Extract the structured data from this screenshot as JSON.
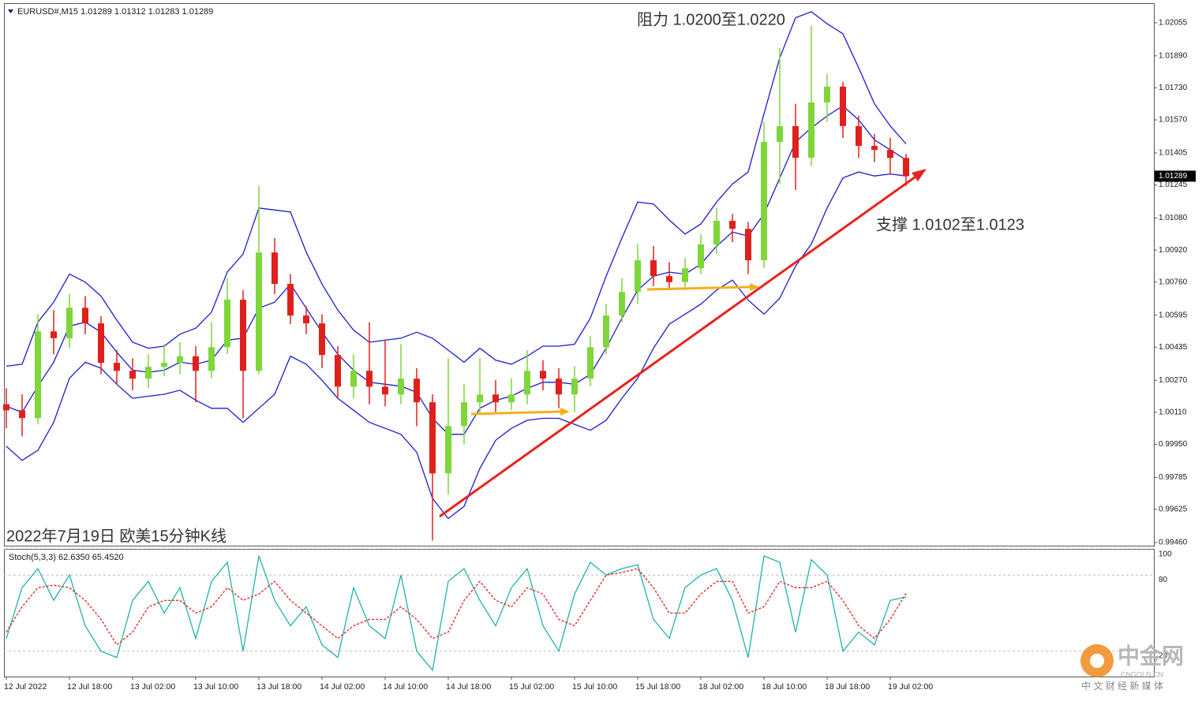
{
  "chart_data": [
    {
      "type": "candlestick",
      "title": "EURUSD#,M15  1.01289 1.01312 1.01283 1.01289",
      "annotations": [
        "阻力 1.0200至1.0220",
        "支撑 1.0102至1.0123",
        "2022年7月19日 欧美15分钟K线"
      ],
      "up_color": "#7ed63a",
      "down_color": "#e0201c",
      "open": [
        1.0015,
        1.0012,
        1.00081,
        1.00514,
        1.0048,
        1.00632,
        1.00554,
        1.00357,
        1.00317,
        1.00278,
        1.00337,
        1.00357,
        1.0039,
        1.00317,
        1.00435,
        1.00672,
        1.00317,
        1.00908,
        1.00751,
        1.00593,
        1.00554,
        1.00396,
        1.00238,
        1.00317,
        1.00238,
        1.00199,
        1.00278,
        1.0016,
        0.99805,
        1.00041,
        1.0016,
        1.00199,
        1.0016,
        1.00199,
        1.00317,
        1.00278,
        1.00199,
        1.00278,
        1.00435,
        1.00593,
        1.00711,
        1.00869,
        1.0079,
        1.0076,
        1.00829,
        1.00948,
        1.01066,
        1.01026,
        1.00869,
        1.0146,
        1.01539,
        1.01381,
        1.01657,
        1.01736,
        1.01539,
        1.0144,
        1.0142,
        1.0138
      ],
      "high": [
        1.0023,
        1.002,
        1.006,
        1.0062,
        1.007,
        1.0069,
        1.0059,
        1.0042,
        1.0038,
        1.004,
        1.0045,
        1.0046,
        1.0044,
        1.0056,
        1.0078,
        1.0072,
        1.0124,
        1.0098,
        1.008,
        1.0064,
        1.006,
        1.0044,
        1.004,
        1.0056,
        1.0047,
        1.0045,
        1.0033,
        1.002,
        1.0038,
        1.0025,
        1.0038,
        1.0027,
        1.0028,
        1.0042,
        1.0037,
        1.0033,
        1.0034,
        1.0049,
        1.0065,
        1.0078,
        1.0095,
        1.0094,
        1.0086,
        1.0088,
        1.01,
        1.0113,
        1.011,
        1.0106,
        1.0156,
        1.0193,
        1.0165,
        1.0204,
        1.018,
        1.0176,
        1.0159,
        1.015,
        1.0148,
        1.014
      ],
      "low": [
        1.0003,
        0.9999,
        1.0005,
        1.004,
        1.0043,
        1.005,
        1.003,
        1.0025,
        1.0022,
        1.0023,
        1.0029,
        1.003,
        1.0016,
        1.0028,
        1.004,
        1.0008,
        1.003,
        1.007,
        1.0055,
        1.005,
        1.0033,
        1.0018,
        1.0018,
        1.0015,
        1.0014,
        1.0015,
        1.0004,
        0.9947,
        0.997,
        0.9995,
        1.001,
        1.0011,
        1.0012,
        1.0015,
        1.0022,
        1.0013,
        1.0011,
        1.0024,
        1.004,
        1.0056,
        1.0065,
        1.0074,
        1.0072,
        1.0072,
        1.008,
        1.009,
        1.0096,
        1.008,
        1.0083,
        1.0125,
        1.0122,
        1.0134,
        1.0156,
        1.0148,
        1.0138,
        1.0136,
        1.013,
        1.0124
      ],
      "close": [
        1.0012,
        1.00081,
        1.00514,
        1.0048,
        1.00632,
        1.00554,
        1.00357,
        1.00317,
        1.00278,
        1.00337,
        1.00357,
        1.0039,
        1.00317,
        1.00435,
        1.00672,
        1.00317,
        1.00908,
        1.00751,
        1.00593,
        1.00554,
        1.00396,
        1.00238,
        1.00317,
        1.00238,
        1.00199,
        1.00278,
        1.0016,
        0.99805,
        1.00041,
        1.0016,
        1.00199,
        1.0016,
        1.00199,
        1.00317,
        1.00278,
        1.00199,
        1.00278,
        1.00435,
        1.00593,
        1.00711,
        1.00869,
        1.0079,
        1.0076,
        1.00829,
        1.00948,
        1.01066,
        1.01026,
        1.00869,
        1.0146,
        1.01539,
        1.01381,
        1.01657,
        1.01736,
        1.01539,
        1.0144,
        1.0142,
        1.0138,
        1.01289
      ],
      "bands": {
        "color": "#1c1cd0",
        "upper": [
          1.0034,
          1.0035,
          1.0056,
          1.0066,
          1.008,
          1.0076,
          1.0069,
          1.0057,
          1.0046,
          1.0043,
          1.0044,
          1.005,
          1.0053,
          1.0061,
          1.0081,
          1.009,
          1.0113,
          1.0112,
          1.0111,
          1.0091,
          1.0075,
          1.0062,
          1.0052,
          1.0046,
          1.0047,
          1.0048,
          1.0051,
          1.0048,
          1.0042,
          1.0036,
          1.0043,
          1.0037,
          1.0035,
          1.0039,
          1.0044,
          1.0044,
          1.0045,
          1.0058,
          1.0079,
          1.0098,
          1.0116,
          1.0115,
          1.0107,
          1.01,
          1.0105,
          1.0116,
          1.0125,
          1.0131,
          1.016,
          1.0188,
          1.0208,
          1.0211,
          1.0205,
          1.02,
          1.0183,
          1.0165,
          1.0154,
          1.0145
        ],
        "middle": [
          1.0014,
          1.0011,
          1.0024,
          1.0036,
          1.0054,
          1.0056,
          1.0051,
          1.0041,
          1.0032,
          1.0031,
          1.0032,
          1.0036,
          1.0035,
          1.0037,
          1.0047,
          1.0048,
          1.0063,
          1.0066,
          1.0075,
          1.0063,
          1.0051,
          1.004,
          1.0032,
          1.0026,
          1.0025,
          1.0024,
          1.0021,
          1.0008,
          1.0,
          1.0,
          1.0013,
          1.0017,
          1.0019,
          1.0023,
          1.0026,
          1.0026,
          1.0025,
          1.003,
          1.0043,
          1.0058,
          1.0072,
          1.0079,
          1.0081,
          1.008,
          1.0085,
          1.0094,
          1.0101,
          1.0099,
          1.011,
          1.0128,
          1.0146,
          1.0153,
          1.0159,
          1.0164,
          1.0157,
          1.0147,
          1.0142,
          1.0137
        ],
        "lower": [
          0.9994,
          0.9987,
          0.9992,
          1.0006,
          1.0028,
          1.0036,
          1.0033,
          1.0025,
          1.0018,
          1.0019,
          1.002,
          1.0022,
          1.0017,
          1.0013,
          1.0013,
          1.0006,
          1.0013,
          1.002,
          1.0039,
          1.0035,
          1.0027,
          1.0018,
          1.0012,
          1.0006,
          1.0003,
          1.0,
          0.9991,
          0.9968,
          0.9958,
          0.9964,
          0.9983,
          0.9997,
          1.0003,
          1.0007,
          1.0008,
          1.0008,
          1.0005,
          1.0002,
          1.0007,
          1.0018,
          1.0028,
          1.0043,
          1.0055,
          1.006,
          1.0065,
          1.0072,
          1.0077,
          1.0067,
          1.006,
          1.0068,
          1.0084,
          1.0095,
          1.0113,
          1.0128,
          1.0131,
          1.0129,
          1.013,
          1.0129
        ]
      },
      "last_price": 1.01289,
      "xlim": [
        -0.15,
        72.7
      ],
      "ylim": [
        0.99444,
        1.02149
      ],
      "yticks": [
        1.02055,
        {
          "value": 1.0189,
          "label": "1.01890"
        },
        {
          "value": 1.0173,
          "label": "1.01730"
        },
        {
          "value": 1.0157,
          "label": "1.01570"
        },
        1.01405,
        1.01245,
        {
          "value": 1.0108,
          "label": "1.01080"
        },
        {
          "value": 1.0092,
          "label": "1.00920"
        },
        {
          "value": 1.0076,
          "label": "1.00760"
        },
        1.00595,
        1.00435,
        {
          "value": 1.0027,
          "label": "1.00270"
        },
        {
          "value": 1.0011,
          "label": "1.00110"
        },
        {
          "value": 0.9995,
          "label": "0.99950"
        },
        0.99785,
        0.99625,
        {
          "value": 0.9946,
          "label": "0.99460"
        }
      ]
    },
    {
      "type": "line",
      "title": "Stoch(5,3,3) 62.6350 65.4520",
      "series": [
        {
          "color": "#20b2aa",
          "values": [
            30,
            70,
            85,
            60,
            80,
            40,
            20,
            15,
            60,
            75,
            50,
            70,
            30,
            75,
            90,
            20,
            95,
            60,
            40,
            55,
            25,
            15,
            70,
            40,
            30,
            80,
            20,
            5,
            75,
            85,
            60,
            40,
            70,
            85,
            40,
            20,
            65,
            90,
            80,
            85,
            88,
            45,
            30,
            70,
            80,
            85,
            60,
            15,
            95,
            90,
            35,
            92,
            80,
            20,
            35,
            25,
            60,
            62.635
          ]
        },
        {
          "color": "#e0201c",
          "dashed": true,
          "values": [
            35,
            55,
            70,
            72,
            70,
            60,
            45,
            25,
            35,
            55,
            60,
            60,
            50,
            55,
            70,
            60,
            65,
            75,
            60,
            50,
            40,
            30,
            40,
            45,
            45,
            55,
            45,
            30,
            35,
            60,
            75,
            60,
            55,
            70,
            65,
            45,
            40,
            60,
            80,
            82,
            85,
            70,
            50,
            50,
            65,
            75,
            75,
            50,
            55,
            75,
            70,
            70,
            75,
            60,
            40,
            30,
            45,
            65.452
          ]
        }
      ],
      "xlim": [
        -0.15,
        72.7
      ],
      "ylim": [
        0,
        100
      ],
      "yticks": [
        100,
        80,
        20
      ],
      "xticks": [
        {
          "value": 0,
          "label": "12 Jul 2022"
        },
        {
          "value": 4,
          "label": "12 Jul 18:00"
        },
        {
          "value": 8,
          "label": "13 Jul 02:00"
        },
        {
          "value": 12,
          "label": "13 Jul 10:00"
        },
        {
          "value": 16,
          "label": "13 Jul 18:00"
        },
        {
          "value": 20,
          "label": "14 Jul 02:00"
        },
        {
          "value": 24,
          "label": "14 Jul 10:00"
        },
        {
          "value": 28,
          "label": "14 Jul 18:00"
        },
        {
          "value": 32,
          "label": "15 Jul 02:00"
        },
        {
          "value": 36,
          "label": "15 Jul 10:00"
        },
        {
          "value": 40,
          "label": "15 Jul 18:00"
        },
        {
          "value": 44,
          "label": "18 Jul 02:00"
        },
        {
          "value": 48,
          "label": "18 Jul 10:00"
        },
        {
          "value": 52,
          "label": "18 Jul 18:00"
        },
        {
          "value": 56,
          "label": "19 Jul 02:00"
        }
      ]
    }
  ],
  "watermark": {
    "name": "中金网",
    "site": "CNGOLD.CN",
    "slogan": "中 文 财 经 新 媒 体"
  }
}
